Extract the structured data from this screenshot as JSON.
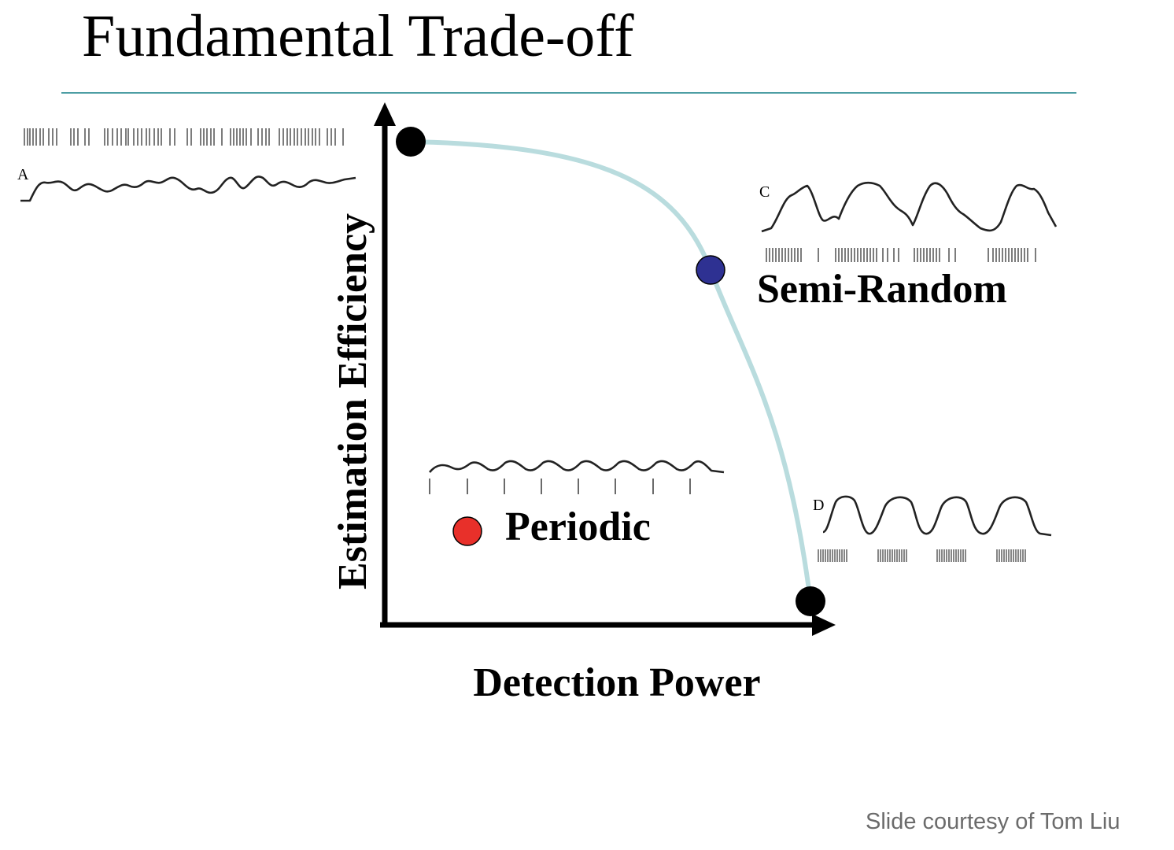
{
  "slide": {
    "title": "Fundamental Trade-off",
    "credit": "Slide courtesy of Tom Liu"
  },
  "axes": {
    "x_label": "Detection Power",
    "y_label": "Estimation Efficiency"
  },
  "points": {
    "semi_random": {
      "label": "Semi-Random",
      "color": "#2e3192"
    },
    "periodic": {
      "label": "Periodic",
      "color": "#e8302a"
    },
    "endpoint_color": "#000000"
  },
  "curve": {
    "color": "#b9dcde"
  },
  "panels": {
    "a": {
      "letter": "A"
    },
    "c": {
      "letter": "C"
    },
    "d": {
      "letter": "D"
    }
  },
  "colors": {
    "title_rule": "#4d9ea4",
    "credit_text": "#6b6b6b"
  }
}
